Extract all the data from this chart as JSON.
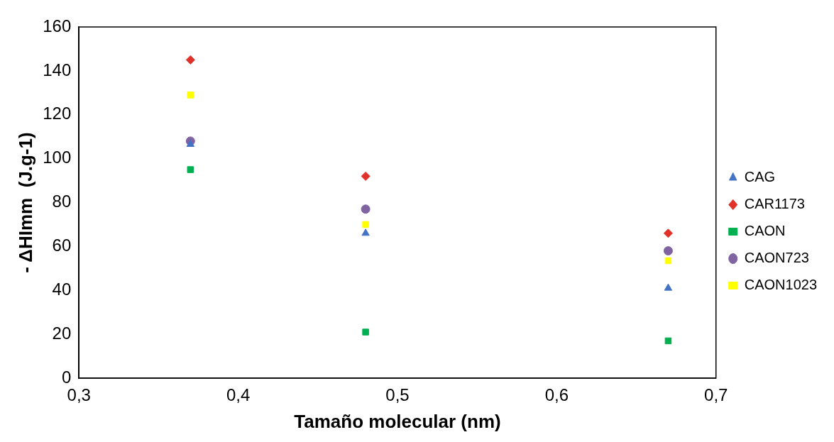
{
  "chart_data": {
    "type": "scatter",
    "xlabel": "Tamaño molecular (nm)",
    "ylabel": "- ΔHImm  (J.g-1)",
    "xlim": [
      0.3,
      0.7
    ],
    "xticks": [
      {
        "value": 0.3,
        "label": "0,3"
      },
      {
        "value": 0.4,
        "label": "0,4"
      },
      {
        "value": 0.5,
        "label": "0,5"
      },
      {
        "value": 0.6,
        "label": "0,6"
      },
      {
        "value": 0.7,
        "label": "0,7"
      }
    ],
    "ylim": [
      0,
      160
    ],
    "yticks": [
      0,
      20,
      40,
      60,
      80,
      100,
      120,
      140,
      160
    ],
    "grid": false,
    "legend": "right",
    "x": [
      0.37,
      0.48,
      0.67
    ],
    "series": [
      {
        "name": "CAG",
        "color": "#4472c4",
        "marker": "triangle",
        "values": [
          106.5,
          66,
          41
        ]
      },
      {
        "name": "CAR1173",
        "color": "#e0312a",
        "marker": "diamond",
        "values": [
          145,
          92,
          66
        ]
      },
      {
        "name": "CAON",
        "color": "#00b050",
        "marker": "square",
        "values": [
          95,
          21,
          17
        ]
      },
      {
        "name": "CAON723",
        "color": "#8064a2",
        "marker": "circle",
        "values": [
          108,
          77,
          58
        ]
      },
      {
        "name": "CAON1023",
        "color": "#ffff00",
        "marker": "square",
        "values": [
          129,
          70,
          53.5
        ]
      }
    ]
  }
}
